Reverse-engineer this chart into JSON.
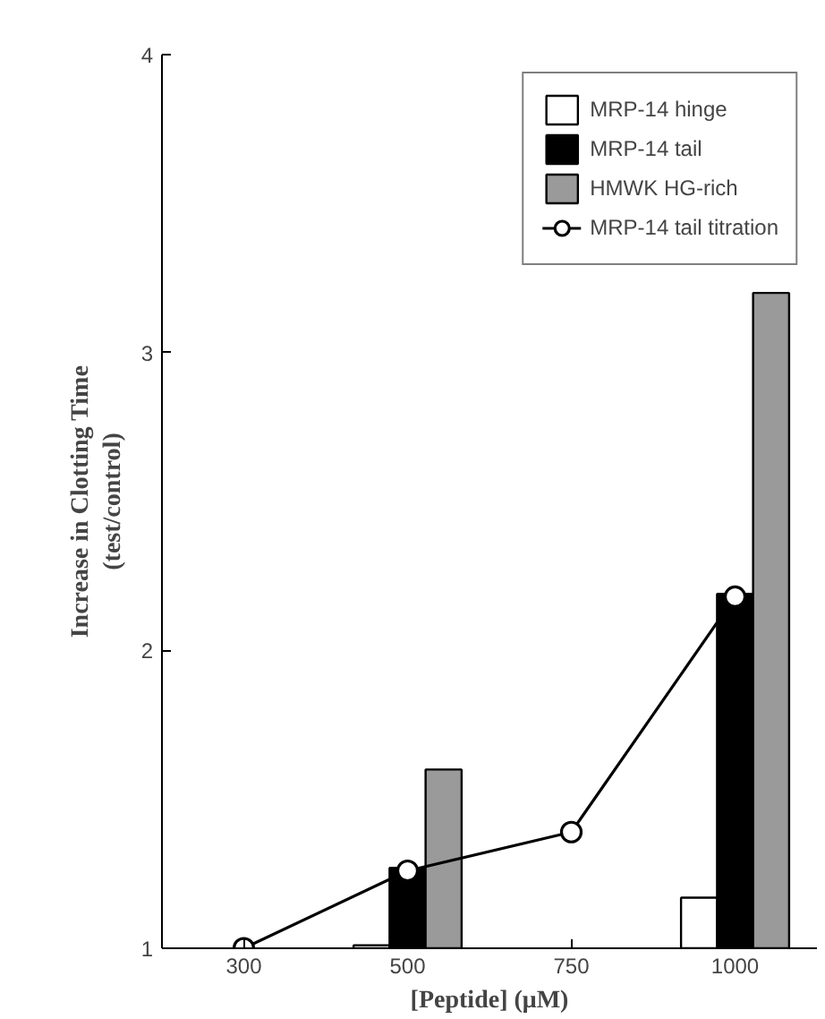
{
  "chart_data": {
    "type": "bar",
    "xlabel": "[Peptide] (μM)",
    "ylabel": "Increase in Clotting Time\n(test/control)",
    "categories": [
      "300",
      "500",
      "750",
      "1000"
    ],
    "series": [
      {
        "name": "MRP-14 hinge",
        "color": "#ffffff",
        "values": [
          null,
          1.01,
          null,
          1.17
        ]
      },
      {
        "name": "MRP-14 tail",
        "color": "#000000",
        "values": [
          null,
          1.27,
          null,
          2.19
        ]
      },
      {
        "name": "HMWK HG-rich",
        "color": "#9a9a9a",
        "values": [
          null,
          1.6,
          null,
          3.2
        ]
      },
      {
        "name": "MRP-14 tail titration",
        "type": "line",
        "color": "#000000",
        "values": [
          1.0,
          1.26,
          1.39,
          2.18
        ]
      }
    ],
    "ylim": [
      1,
      4
    ],
    "yticks": [
      1,
      2,
      3,
      4
    ],
    "grid": false,
    "legend": "top right",
    "marker": "circle"
  }
}
